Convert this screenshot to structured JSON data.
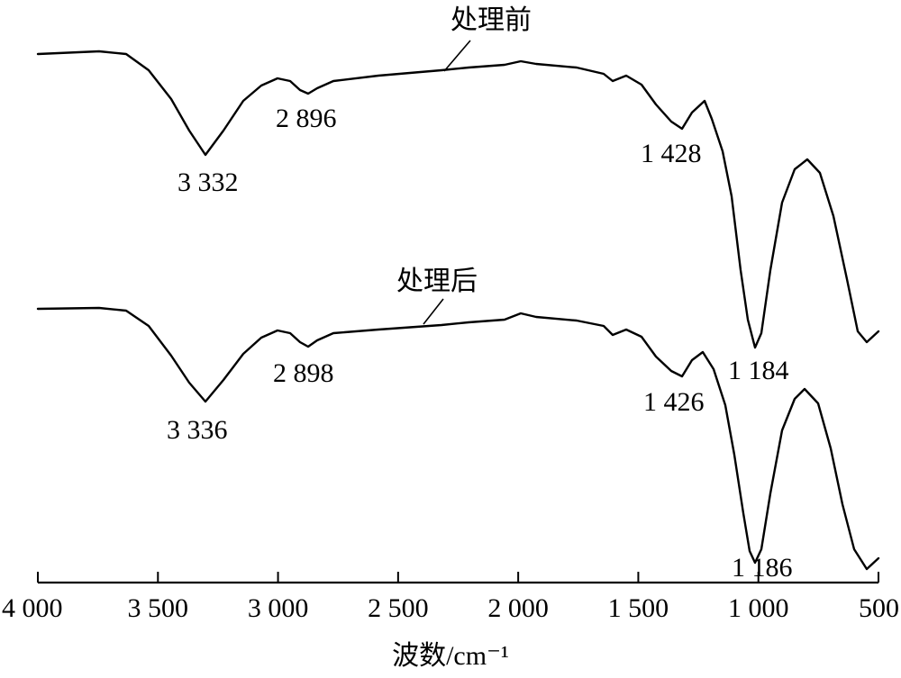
{
  "chart_data": {
    "type": "line",
    "xlabel": "波数/cm⁻¹",
    "ylabel": "",
    "title": "",
    "xlim": [
      4000,
      500
    ],
    "x_reversed": true,
    "y_axis_shown": false,
    "grid": false,
    "x_ticks": [
      4000,
      3500,
      3000,
      2500,
      2000,
      1500,
      1000,
      500
    ],
    "x_tick_labels": [
      "4 000",
      "3 500",
      "3 000",
      "2 500",
      "2 000",
      "1 500",
      "1 000",
      "500"
    ],
    "series": [
      {
        "name": "处理前",
        "peaks": [
          {
            "x": 3332,
            "label": "3 332"
          },
          {
            "x": 2896,
            "label": "2 896"
          },
          {
            "x": 1428,
            "label": "1 428"
          },
          {
            "x": 1184,
            "label": "1 184"
          }
        ]
      },
      {
        "name": "处理后",
        "peaks": [
          {
            "x": 3336,
            "label": "3 336"
          },
          {
            "x": 2898,
            "label": "2 898"
          },
          {
            "x": 1426,
            "label": "1 426"
          },
          {
            "x": 1186,
            "label": "1 186"
          }
        ]
      }
    ]
  }
}
